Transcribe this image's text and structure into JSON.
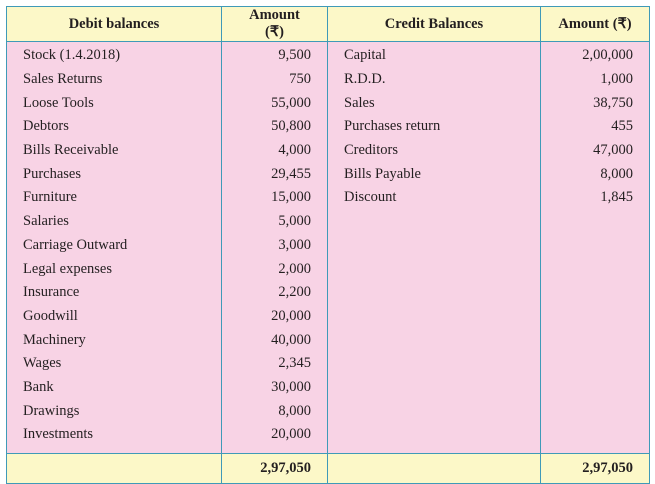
{
  "headers": [
    "Debit balances",
    "Amount (₹)",
    "Credit Balances",
    "Amount (₹)"
  ],
  "rows": [
    {
      "debit": "Stock (1.4.2018)",
      "debit_amt": "9,500",
      "credit": "Capital",
      "credit_amt": "2,00,000"
    },
    {
      "debit": "Sales Returns",
      "debit_amt": "750",
      "credit": "R.D.D.",
      "credit_amt": "1,000"
    },
    {
      "debit": "Loose Tools",
      "debit_amt": "55,000",
      "credit": "Sales",
      "credit_amt": "38,750"
    },
    {
      "debit": "Debtors",
      "debit_amt": "50,800",
      "credit": "Purchases return",
      "credit_amt": "455"
    },
    {
      "debit": "Bills Receivable",
      "debit_amt": "4,000",
      "credit": "Creditors",
      "credit_amt": "47,000"
    },
    {
      "debit": "Purchases",
      "debit_amt": "29,455",
      "credit": "Bills Payable",
      "credit_amt": "8,000"
    },
    {
      "debit": "Furniture",
      "debit_amt": "15,000",
      "credit": "Discount",
      "credit_amt": "1,845"
    },
    {
      "debit": "Salaries",
      "debit_amt": "5,000"
    },
    {
      "debit": "Carriage Outward",
      "debit_amt": "3,000"
    },
    {
      "debit": "Legal expenses",
      "debit_amt": "2,000"
    },
    {
      "debit": "Insurance",
      "debit_amt": "2,200"
    },
    {
      "debit": "Goodwill",
      "debit_amt": "20,000"
    },
    {
      "debit": "Machinery",
      "debit_amt": "40,000"
    },
    {
      "debit": "Wages",
      "debit_amt": "2,345"
    },
    {
      "debit": "Bank",
      "debit_amt": "30,000"
    },
    {
      "debit": "Drawings",
      "debit_amt": "8,000"
    },
    {
      "debit": "Investments",
      "debit_amt": "20,000"
    }
  ],
  "totals": {
    "debit": "2,97,050",
    "credit": "2,97,050"
  }
}
